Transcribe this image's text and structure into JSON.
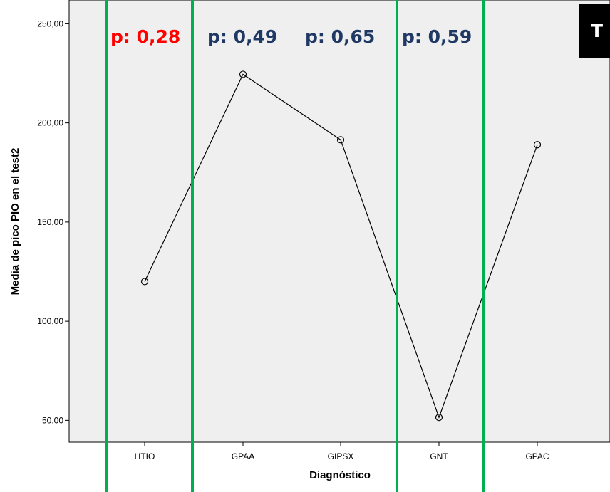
{
  "chart_data": {
    "type": "line",
    "title": "",
    "xlabel": "Diagnóstico",
    "ylabel": "Media de pico PIO en el test2",
    "categories": [
      "HTIO",
      "GPAA",
      "GIPSX",
      "GNT",
      "GPAC"
    ],
    "values": [
      120,
      224.5,
      191.5,
      51.5,
      189
    ],
    "ylim": [
      39,
      262
    ],
    "yticks": [
      50,
      100,
      150,
      200,
      250
    ],
    "ytick_labels": [
      "50,00",
      "100,00",
      "150,00",
      "200,00",
      "250,00"
    ],
    "grid": false,
    "legend": "none",
    "annotations": [
      {
        "text": "p: 0,28",
        "color": "#ff0000"
      },
      {
        "text": "p: 0,49",
        "color": "#1f3864"
      },
      {
        "text": "p: 0,65",
        "color": "#1f3864"
      },
      {
        "text": "p: 0,59",
        "color": "#1f3864"
      }
    ],
    "corner_label": "T"
  },
  "colors": {
    "plot_background": "#efefef",
    "line": "#000000",
    "divider": "#00b050",
    "corner_box": "#000000"
  }
}
